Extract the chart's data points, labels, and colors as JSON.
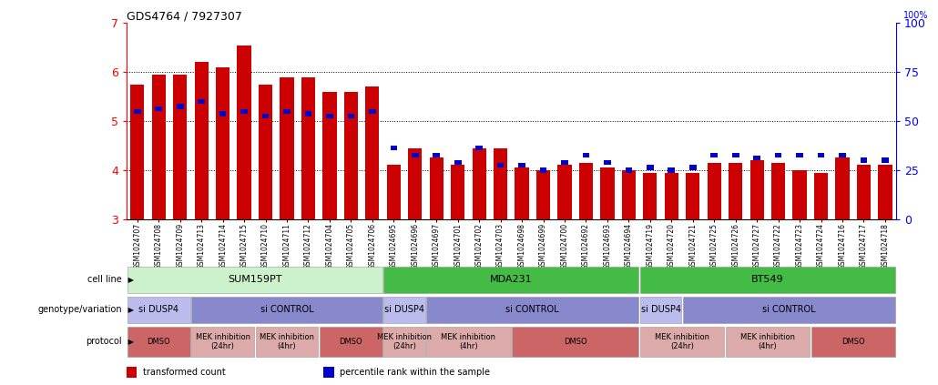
{
  "title": "GDS4764 / 7927307",
  "samples": [
    "GSM1024707",
    "GSM1024708",
    "GSM1024709",
    "GSM1024713",
    "GSM1024714",
    "GSM1024715",
    "GSM1024710",
    "GSM1024711",
    "GSM1024712",
    "GSM1024704",
    "GSM1024705",
    "GSM1024706",
    "GSM1024695",
    "GSM1024696",
    "GSM1024697",
    "GSM1024701",
    "GSM1024702",
    "GSM1024703",
    "GSM1024698",
    "GSM1024699",
    "GSM1024700",
    "GSM1024692",
    "GSM1024693",
    "GSM1024694",
    "GSM1024719",
    "GSM1024720",
    "GSM1024721",
    "GSM1024725",
    "GSM1024726",
    "GSM1024727",
    "GSM1024722",
    "GSM1024723",
    "GSM1024724",
    "GSM1024716",
    "GSM1024717",
    "GSM1024718"
  ],
  "red_values": [
    5.75,
    5.95,
    5.95,
    6.2,
    6.1,
    6.55,
    5.75,
    5.9,
    5.9,
    5.6,
    5.6,
    5.7,
    4.1,
    4.45,
    4.25,
    4.1,
    4.45,
    4.45,
    4.05,
    4.0,
    4.1,
    4.15,
    4.05,
    4.0,
    3.95,
    3.95,
    3.95,
    4.15,
    4.15,
    4.2,
    4.15,
    4.0,
    3.95,
    4.25,
    4.1,
    4.1
  ],
  "blue_values": [
    5.2,
    5.25,
    5.3,
    5.4,
    5.15,
    5.2,
    5.1,
    5.2,
    5.15,
    5.1,
    5.1,
    5.2,
    4.45,
    4.3,
    4.3,
    4.15,
    4.45,
    4.1,
    4.1,
    4.0,
    4.15,
    4.3,
    4.15,
    4.0,
    4.05,
    4.0,
    4.05,
    4.3,
    4.3,
    4.25,
    4.3,
    4.3,
    4.3,
    4.3,
    4.2,
    4.2
  ],
  "ymin": 3.0,
  "ymax": 7.0,
  "yticks_left": [
    3,
    4,
    5,
    6,
    7
  ],
  "yticks_right": [
    0,
    25,
    50,
    75,
    100
  ],
  "bar_color": "#CC0000",
  "blue_color": "#0000CC",
  "cell_lines": [
    {
      "label": "SUM159PT",
      "start": 0,
      "end": 12,
      "color": "#ccf2cc"
    },
    {
      "label": "MDA231",
      "start": 12,
      "end": 24,
      "color": "#44bb44"
    },
    {
      "label": "BT549",
      "start": 24,
      "end": 36,
      "color": "#44bb44"
    }
  ],
  "genotypes": [
    {
      "label": "si DUSP4",
      "start": 0,
      "end": 3,
      "color": "#bbbbee"
    },
    {
      "label": "si CONTROL",
      "start": 3,
      "end": 12,
      "color": "#8888cc"
    },
    {
      "label": "si DUSP4",
      "start": 12,
      "end": 14,
      "color": "#bbbbee"
    },
    {
      "label": "si CONTROL",
      "start": 14,
      "end": 24,
      "color": "#8888cc"
    },
    {
      "label": "si DUSP4",
      "start": 24,
      "end": 26,
      "color": "#bbbbee"
    },
    {
      "label": "si CONTROL",
      "start": 26,
      "end": 36,
      "color": "#8888cc"
    }
  ],
  "protocols": [
    {
      "label": "DMSO",
      "start": 0,
      "end": 3,
      "color": "#cc6666"
    },
    {
      "label": "MEK inhibition\n(24hr)",
      "start": 3,
      "end": 6,
      "color": "#ddaaaa"
    },
    {
      "label": "MEK inhibition\n(4hr)",
      "start": 6,
      "end": 9,
      "color": "#ddaaaa"
    },
    {
      "label": "DMSO",
      "start": 9,
      "end": 12,
      "color": "#cc6666"
    },
    {
      "label": "MEK inhibition\n(24hr)",
      "start": 12,
      "end": 14,
      "color": "#ddaaaa"
    },
    {
      "label": "MEK inhibition\n(4hr)",
      "start": 14,
      "end": 18,
      "color": "#ddaaaa"
    },
    {
      "label": "DMSO",
      "start": 18,
      "end": 24,
      "color": "#cc6666"
    },
    {
      "label": "MEK inhibition\n(24hr)",
      "start": 24,
      "end": 28,
      "color": "#ddaaaa"
    },
    {
      "label": "MEK inhibition\n(4hr)",
      "start": 28,
      "end": 32,
      "color": "#ddaaaa"
    },
    {
      "label": "DMSO",
      "start": 32,
      "end": 36,
      "color": "#cc6666"
    }
  ],
  "row_labels": [
    "cell line",
    "genotype/variation",
    "protocol"
  ],
  "legend_items": [
    {
      "color": "#CC0000",
      "label": "transformed count"
    },
    {
      "color": "#0000CC",
      "label": "percentile rank within the sample"
    }
  ],
  "grid_dotted_at": [
    4,
    5,
    6
  ]
}
